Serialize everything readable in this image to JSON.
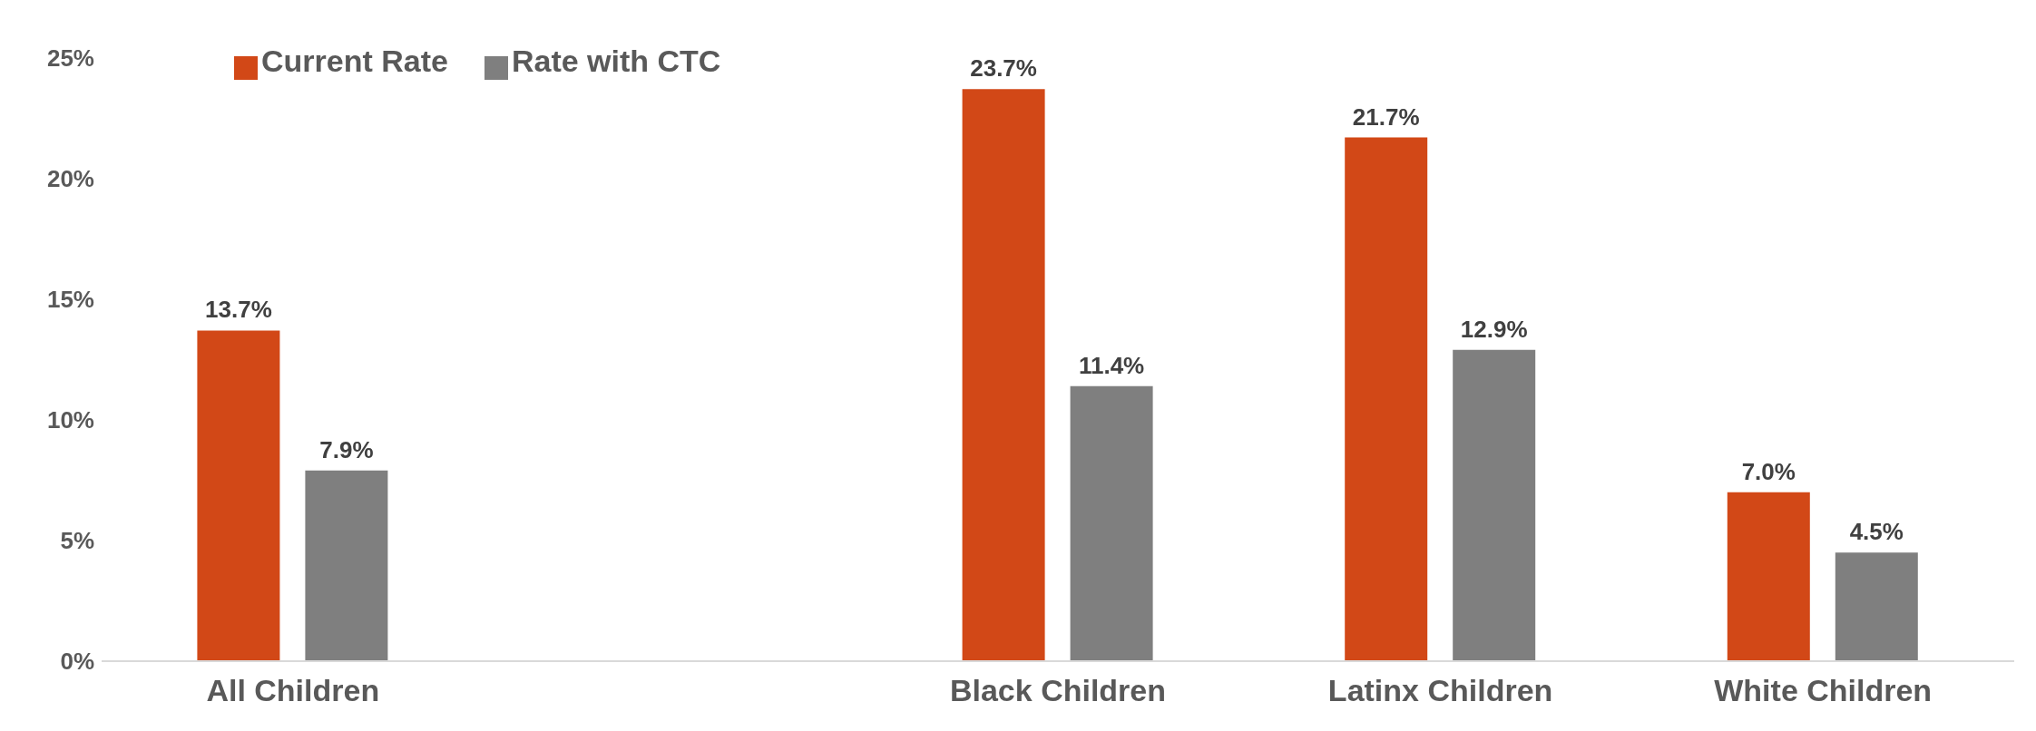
{
  "chart_data": {
    "type": "bar",
    "categories": [
      "All Children",
      null,
      "Black Children",
      "Latinx Children",
      "White Children"
    ],
    "series": [
      {
        "name": "Current Rate",
        "color": "#d24817",
        "values": [
          13.7,
          null,
          23.7,
          21.7,
          7.0
        ],
        "value_labels": [
          "13.7%",
          null,
          "23.7%",
          "21.7%",
          "7.0%"
        ]
      },
      {
        "name": "Rate with CTC",
        "color": "#7f7f7f",
        "values": [
          7.9,
          null,
          11.4,
          12.9,
          4.5
        ],
        "value_labels": [
          "7.9%",
          null,
          "11.4%",
          "12.9%",
          "4.5%"
        ]
      }
    ],
    "ylim": [
      0,
      25
    ],
    "yticks": [
      {
        "value": 0,
        "label": "0%"
      },
      {
        "value": 5,
        "label": "5%"
      },
      {
        "value": 10,
        "label": "10%"
      },
      {
        "value": 15,
        "label": "15%"
      },
      {
        "value": 20,
        "label": "20%"
      },
      {
        "value": 25,
        "label": "25%"
      }
    ],
    "grid": false,
    "legend": "top left"
  }
}
